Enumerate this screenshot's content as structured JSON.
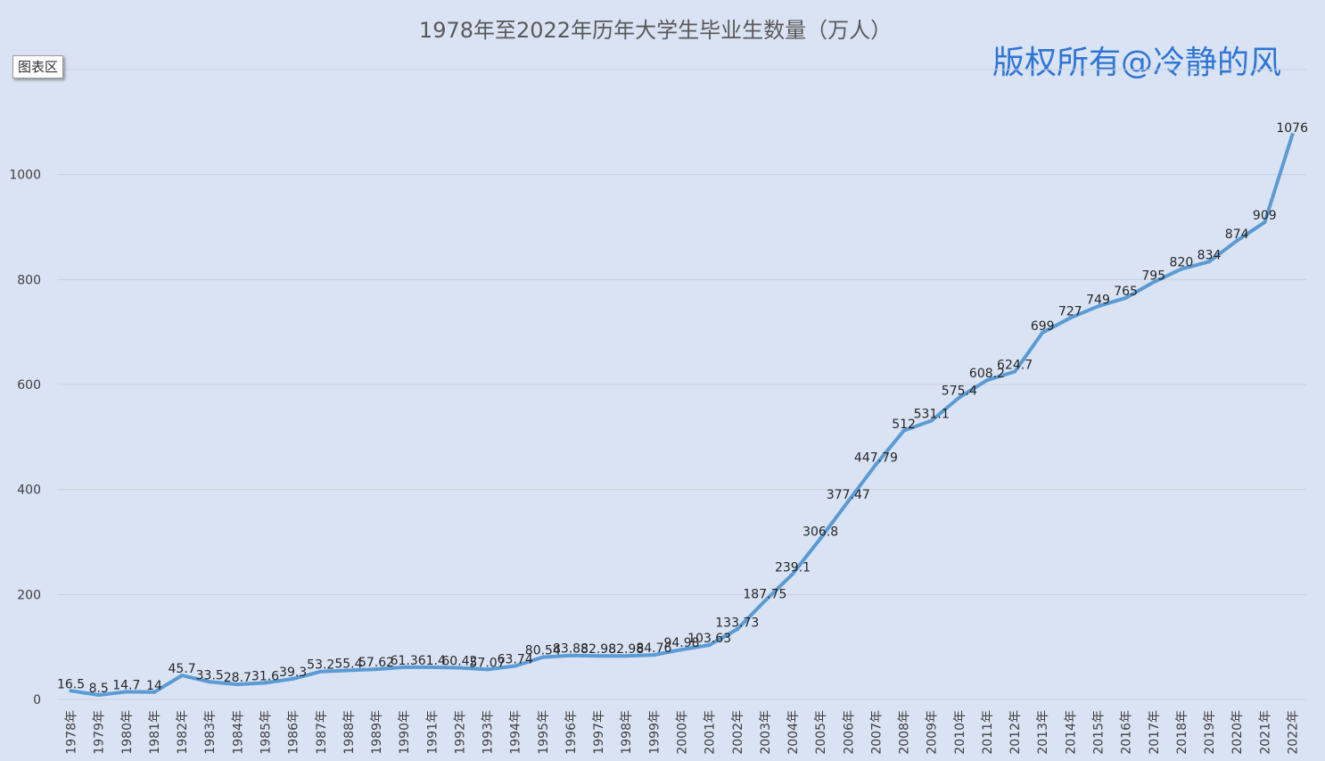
{
  "tooltip_text": "图表区",
  "watermark_text": "版权所有@冷静的风",
  "colors": {
    "background": "#dae3f3",
    "line": "#5b9bd5",
    "watermark": "#2e75d6"
  },
  "chart_data": {
    "type": "line",
    "title": "1978年至2022年历年大学生毕业生数量（万人）",
    "xlabel": "",
    "ylabel": "",
    "ylim": [
      0,
      1200
    ],
    "yticks": [
      0,
      200,
      400,
      600,
      800,
      1000
    ],
    "grid": true,
    "categories": [
      "1978年",
      "1979年",
      "1980年",
      "1981年",
      "1982年",
      "1983年",
      "1984年",
      "1985年",
      "1986年",
      "1987年",
      "1988年",
      "1989年",
      "1990年",
      "1991年",
      "1992年",
      "1993年",
      "1994年",
      "1995年",
      "1996年",
      "1997年",
      "1998年",
      "1999年",
      "2000年",
      "2001年",
      "2002年",
      "2003年",
      "2004年",
      "2005年",
      "2006年",
      "2007年",
      "2008年",
      "2009年",
      "2010年",
      "2011年",
      "2012年",
      "2013年",
      "2014年",
      "2015年",
      "2016年",
      "2017年",
      "2018年",
      "2019年",
      "2020年",
      "2021年",
      "2022年"
    ],
    "series": [
      {
        "values": [
          16.5,
          8.5,
          14.7,
          14,
          45.7,
          33.5,
          28.7,
          31.6,
          39.3,
          53.2,
          55.4,
          57.62,
          61.3,
          61.4,
          60.42,
          57.07,
          63.74,
          80.54,
          83.88,
          82.98,
          82.98,
          84.76,
          94.98,
          103.63,
          133.73,
          187.75,
          239.1,
          306.8,
          377.47,
          447.79,
          512,
          531.1,
          575.4,
          608.2,
          624.7,
          699,
          727,
          749,
          765,
          795,
          820,
          834,
          874,
          909,
          1076
        ],
        "labels": [
          "16.5",
          "8.5",
          "14.7",
          "14",
          "45.7",
          "33.5",
          "28.7",
          "31.6",
          "39.3",
          "53.2",
          "55.4",
          "57.62",
          "61.3",
          "61.4",
          "60.42",
          "57.07",
          "63.74",
          "80.54",
          "83.88",
          "82.98",
          "82.98",
          "84.76",
          "94.98",
          "103.63",
          "133.73",
          "187.75",
          "239.1",
          "306.8",
          "377.47",
          "447.79",
          "512",
          "531.1",
          "575.4",
          "608.2",
          "624.7",
          "699",
          "727",
          "749",
          "765",
          "795",
          "820",
          "834",
          "874",
          "909",
          "1076"
        ]
      }
    ]
  }
}
